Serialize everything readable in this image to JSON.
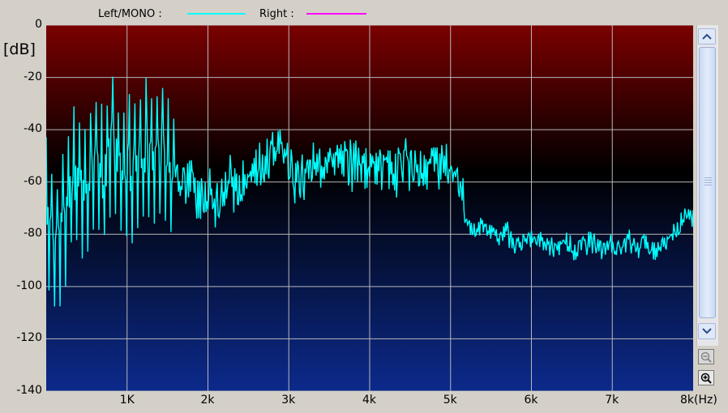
{
  "legend": {
    "left_label": "Left/MONO :",
    "right_label": "Right :",
    "left_color": "#00ffff",
    "right_color": "#ff00ff"
  },
  "y_unit": "[dB]",
  "scroll": {
    "up_icon": "chevron-up-icon",
    "down_icon": "chevron-down-icon",
    "zoom_out_icon": "zoom-out-icon",
    "zoom_in_icon": "zoom-in-icon"
  },
  "chart_data": {
    "type": "line",
    "ylabel": "[dB]",
    "xlabel": "",
    "ylim": [
      -140,
      0
    ],
    "xlim": [
      0,
      8000
    ],
    "yticks": [
      "0",
      "-20",
      "-40",
      "-60",
      "-80",
      "-100",
      "-120",
      "-140"
    ],
    "xticks": [
      "1K",
      "2k",
      "3k",
      "4k",
      "5k",
      "6k",
      "7k",
      "8k(Hz)"
    ],
    "grid": true,
    "background": [
      "#7a0000",
      "#000000",
      "#0c2a8c"
    ],
    "series": [
      {
        "name": "Left/MONO",
        "color": "#00ffff",
        "x": [
          0,
          100,
          200,
          300,
          400,
          500,
          600,
          700,
          800,
          900,
          1000,
          1100,
          1200,
          1300,
          1400,
          1500,
          1600,
          1700,
          1800,
          1900,
          2000,
          2100,
          2200,
          2300,
          2400,
          2500,
          2600,
          2700,
          2800,
          2900,
          3000,
          3100,
          3200,
          3300,
          3400,
          3500,
          3600,
          3700,
          3800,
          3900,
          4000,
          4100,
          4200,
          4300,
          4400,
          4500,
          4600,
          4700,
          4800,
          4900,
          5000,
          5100,
          5200,
          5300,
          5400,
          5500,
          5600,
          5700,
          5800,
          5900,
          6000,
          6100,
          6200,
          6300,
          6400,
          6500,
          6600,
          6700,
          6800,
          6900,
          7000,
          7100,
          7200,
          7300,
          7400,
          7500,
          7600,
          7700,
          7800,
          7900,
          8000
        ],
        "values": [
          -70,
          -85,
          -75,
          -60,
          -55,
          -62,
          -50,
          -58,
          -45,
          -52,
          -55,
          -50,
          -45,
          -50,
          -48,
          -55,
          -60,
          -58,
          -62,
          -65,
          -65,
          -68,
          -62,
          -60,
          -64,
          -58,
          -55,
          -55,
          -50,
          -48,
          -55,
          -58,
          -60,
          -55,
          -52,
          -56,
          -55,
          -52,
          -55,
          -52,
          -54,
          -55,
          -52,
          -55,
          -55,
          -53,
          -56,
          -57,
          -54,
          -52,
          -55,
          -60,
          -75,
          -80,
          -75,
          -78,
          -82,
          -80,
          -85,
          -83,
          -82,
          -84,
          -83,
          -85,
          -82,
          -86,
          -84,
          -83,
          -85,
          -86,
          -84,
          -85,
          -83,
          -85,
          -84,
          -86,
          -84,
          -82,
          -78,
          -74,
          -72
        ]
      }
    ]
  }
}
